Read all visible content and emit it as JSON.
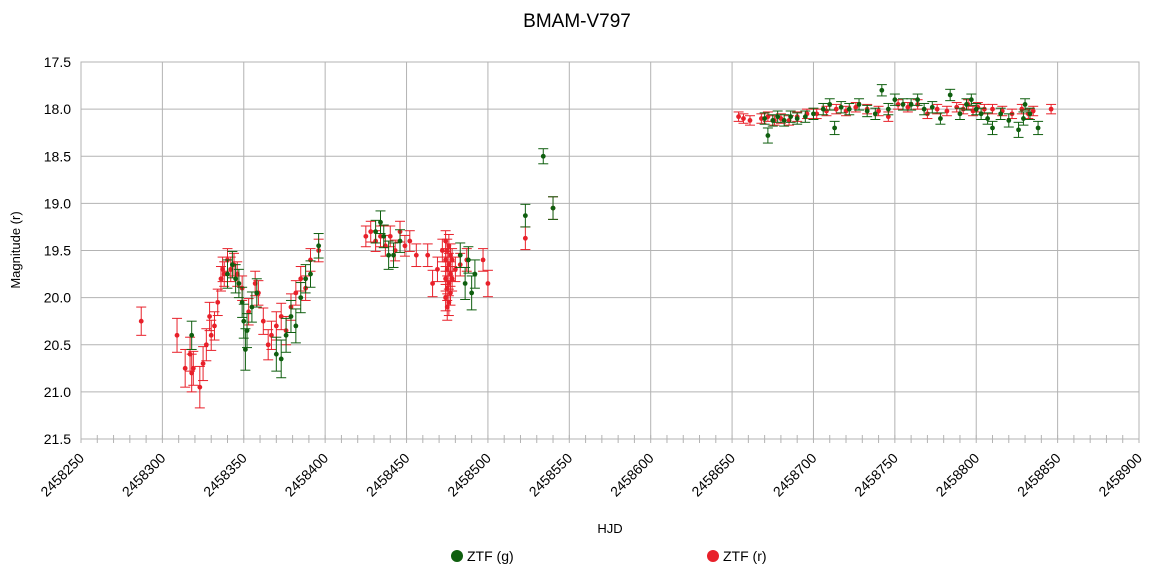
{
  "chart_data": {
    "type": "scatter",
    "title": "BMAM-V797",
    "xlabel": "HJD",
    "ylabel": "Magnitude (r)",
    "xlim": [
      2458250,
      2458900
    ],
    "ylim": [
      17.5,
      21.5
    ],
    "y_inverted": true,
    "x_ticks": [
      "2458250",
      "2458300",
      "2458350",
      "2458400",
      "2458450",
      "2458500",
      "2458550",
      "2458600",
      "2458650",
      "2458700",
      "2458750",
      "2458800",
      "2458850",
      "2458900"
    ],
    "y_ticks": [
      "17.5",
      "18.0",
      "18.5",
      "19.0",
      "19.5",
      "20.0",
      "20.5",
      "21.0",
      "21.5"
    ],
    "grid": true,
    "legend_position": "bottom",
    "series": [
      {
        "name": "ZTF (g)",
        "color": "#0f5f0f",
        "points": [
          [
            2458318,
            20.4,
            0.15
          ],
          [
            2458340,
            19.75,
            0.15
          ],
          [
            2458343,
            19.65,
            0.14
          ],
          [
            2458345,
            19.8,
            0.15
          ],
          [
            2458347,
            19.85,
            0.15
          ],
          [
            2458349,
            20.05,
            0.16
          ],
          [
            2458350,
            20.25,
            0.18
          ],
          [
            2458351,
            20.55,
            0.22
          ],
          [
            2458352,
            20.35,
            0.18
          ],
          [
            2458355,
            20.1,
            0.16
          ],
          [
            2458358,
            19.95,
            0.15
          ],
          [
            2458370,
            20.6,
            0.18
          ],
          [
            2458373,
            20.65,
            0.2
          ],
          [
            2458376,
            20.4,
            0.18
          ],
          [
            2458379,
            20.2,
            0.17
          ],
          [
            2458382,
            20.3,
            0.18
          ],
          [
            2458385,
            20.0,
            0.16
          ],
          [
            2458388,
            19.8,
            0.15
          ],
          [
            2458391,
            19.75,
            0.14
          ],
          [
            2458396,
            19.45,
            0.13
          ],
          [
            2458431,
            19.3,
            0.12
          ],
          [
            2458434,
            19.2,
            0.12
          ],
          [
            2458436,
            19.35,
            0.12
          ],
          [
            2458439,
            19.55,
            0.15
          ],
          [
            2458442,
            19.55,
            0.13
          ],
          [
            2458446,
            19.4,
            0.12
          ],
          [
            2458483,
            19.55,
            0.13
          ],
          [
            2458486,
            19.85,
            0.17
          ],
          [
            2458488,
            19.6,
            0.14
          ],
          [
            2458490,
            19.95,
            0.18
          ],
          [
            2458492,
            19.75,
            0.15
          ],
          [
            2458523,
            19.13,
            0.12
          ],
          [
            2458534,
            18.5,
            0.08
          ],
          [
            2458540,
            19.05,
            0.12
          ],
          [
            2458670,
            18.1,
            0.06
          ],
          [
            2458672,
            18.28,
            0.08
          ],
          [
            2458675,
            18.12,
            0.06
          ],
          [
            2458678,
            18.08,
            0.06
          ],
          [
            2458682,
            18.12,
            0.06
          ],
          [
            2458686,
            18.08,
            0.06
          ],
          [
            2458690,
            18.1,
            0.06
          ],
          [
            2458695,
            18.08,
            0.06
          ],
          [
            2458700,
            18.05,
            0.06
          ],
          [
            2458706,
            18.0,
            0.06
          ],
          [
            2458710,
            17.95,
            0.06
          ],
          [
            2458713,
            18.2,
            0.07
          ],
          [
            2458717,
            17.98,
            0.06
          ],
          [
            2458722,
            18.0,
            0.06
          ],
          [
            2458728,
            17.95,
            0.06
          ],
          [
            2458733,
            18.02,
            0.06
          ],
          [
            2458738,
            18.05,
            0.06
          ],
          [
            2458742,
            17.8,
            0.06
          ],
          [
            2458746,
            18.0,
            0.06
          ],
          [
            2458750,
            17.9,
            0.06
          ],
          [
            2458755,
            17.95,
            0.06
          ],
          [
            2458760,
            17.95,
            0.06
          ],
          [
            2458764,
            17.9,
            0.06
          ],
          [
            2458768,
            18.0,
            0.06
          ],
          [
            2458773,
            17.98,
            0.06
          ],
          [
            2458778,
            18.1,
            0.06
          ],
          [
            2458784,
            17.85,
            0.06
          ],
          [
            2458790,
            18.05,
            0.06
          ],
          [
            2458794,
            17.95,
            0.06
          ],
          [
            2458797,
            17.9,
            0.06
          ],
          [
            2458800,
            18.0,
            0.06
          ],
          [
            2458803,
            18.05,
            0.06
          ],
          [
            2458807,
            18.1,
            0.06
          ],
          [
            2458810,
            18.2,
            0.07
          ],
          [
            2458815,
            18.05,
            0.06
          ],
          [
            2458820,
            18.12,
            0.07
          ],
          [
            2458826,
            18.22,
            0.08
          ],
          [
            2458829,
            18.1,
            0.07
          ],
          [
            2458830,
            17.95,
            0.06
          ],
          [
            2458833,
            18.05,
            0.06
          ],
          [
            2458838,
            18.2,
            0.07
          ]
        ]
      },
      {
        "name": "ZTF (r)",
        "color": "#e8202a",
        "points": [
          [
            2458287,
            20.25,
            0.15
          ],
          [
            2458309,
            20.4,
            0.18
          ],
          [
            2458314,
            20.75,
            0.2
          ],
          [
            2458317,
            20.6,
            0.18
          ],
          [
            2458318,
            20.8,
            0.2
          ],
          [
            2458319,
            20.75,
            0.18
          ],
          [
            2458323,
            20.95,
            0.22
          ],
          [
            2458325,
            20.7,
            0.18
          ],
          [
            2458327,
            20.5,
            0.17
          ],
          [
            2458329,
            20.2,
            0.15
          ],
          [
            2458330,
            20.4,
            0.16
          ],
          [
            2458332,
            20.3,
            0.15
          ],
          [
            2458334,
            20.05,
            0.14
          ],
          [
            2458336,
            19.8,
            0.13
          ],
          [
            2458337,
            19.7,
            0.13
          ],
          [
            2458338,
            19.75,
            0.13
          ],
          [
            2458340,
            19.6,
            0.12
          ],
          [
            2458342,
            19.7,
            0.13
          ],
          [
            2458344,
            19.65,
            0.12
          ],
          [
            2458346,
            19.75,
            0.13
          ],
          [
            2458349,
            19.9,
            0.13
          ],
          [
            2458353,
            20.15,
            0.14
          ],
          [
            2458357,
            19.85,
            0.13
          ],
          [
            2458359,
            19.95,
            0.13
          ],
          [
            2458362,
            20.25,
            0.14
          ],
          [
            2458365,
            20.5,
            0.16
          ],
          [
            2458367,
            20.4,
            0.15
          ],
          [
            2458370,
            20.3,
            0.15
          ],
          [
            2458373,
            20.2,
            0.14
          ],
          [
            2458376,
            20.35,
            0.15
          ],
          [
            2458379,
            20.1,
            0.14
          ],
          [
            2458382,
            19.95,
            0.13
          ],
          [
            2458385,
            19.8,
            0.13
          ],
          [
            2458388,
            19.9,
            0.13
          ],
          [
            2458391,
            19.6,
            0.12
          ],
          [
            2458396,
            19.5,
            0.12
          ],
          [
            2458425,
            19.35,
            0.11
          ],
          [
            2458428,
            19.3,
            0.11
          ],
          [
            2458431,
            19.4,
            0.11
          ],
          [
            2458434,
            19.35,
            0.11
          ],
          [
            2458437,
            19.45,
            0.11
          ],
          [
            2458440,
            19.35,
            0.11
          ],
          [
            2458443,
            19.5,
            0.11
          ],
          [
            2458446,
            19.3,
            0.11
          ],
          [
            2458449,
            19.45,
            0.11
          ],
          [
            2458452,
            19.4,
            0.11
          ],
          [
            2458456,
            19.55,
            0.12
          ],
          [
            2458463,
            19.55,
            0.12
          ],
          [
            2458466,
            19.85,
            0.14
          ],
          [
            2458469,
            19.7,
            0.13
          ],
          [
            2458472,
            19.5,
            0.12
          ],
          [
            2458474,
            19.4,
            0.11
          ],
          [
            2458474,
            19.6,
            0.12
          ],
          [
            2458474,
            19.8,
            0.13
          ],
          [
            2458474,
            20.0,
            0.14
          ],
          [
            2458475,
            19.5,
            0.12
          ],
          [
            2458475,
            19.7,
            0.13
          ],
          [
            2458475,
            19.9,
            0.13
          ],
          [
            2458475,
            20.1,
            0.14
          ],
          [
            2458476,
            19.45,
            0.12
          ],
          [
            2458476,
            19.65,
            0.12
          ],
          [
            2458476,
            19.85,
            0.13
          ],
          [
            2458476,
            20.05,
            0.14
          ],
          [
            2458477,
            19.55,
            0.12
          ],
          [
            2458477,
            19.75,
            0.13
          ],
          [
            2458477,
            19.95,
            0.13
          ],
          [
            2458478,
            19.6,
            0.12
          ],
          [
            2458478,
            19.8,
            0.13
          ],
          [
            2458480,
            19.7,
            0.13
          ],
          [
            2458483,
            19.65,
            0.12
          ],
          [
            2458487,
            19.6,
            0.12
          ],
          [
            2458497,
            19.6,
            0.12
          ],
          [
            2458500,
            19.85,
            0.14
          ],
          [
            2458523,
            19.37,
            0.12
          ],
          [
            2458540,
            19.05,
            0.12
          ],
          [
            2458654,
            18.08,
            0.05
          ],
          [
            2458657,
            18.1,
            0.05
          ],
          [
            2458661,
            18.12,
            0.05
          ],
          [
            2458668,
            18.1,
            0.05
          ],
          [
            2458672,
            18.08,
            0.05
          ],
          [
            2458676,
            18.12,
            0.05
          ],
          [
            2458680,
            18.1,
            0.05
          ],
          [
            2458685,
            18.12,
            0.05
          ],
          [
            2458690,
            18.08,
            0.05
          ],
          [
            2458696,
            18.05,
            0.05
          ],
          [
            2458702,
            18.05,
            0.05
          ],
          [
            2458708,
            18.02,
            0.05
          ],
          [
            2458714,
            18.0,
            0.05
          ],
          [
            2458720,
            18.02,
            0.05
          ],
          [
            2458726,
            17.98,
            0.05
          ],
          [
            2458733,
            18.0,
            0.05
          ],
          [
            2458740,
            18.02,
            0.05
          ],
          [
            2458746,
            18.08,
            0.05
          ],
          [
            2458752,
            17.95,
            0.05
          ],
          [
            2458758,
            17.98,
            0.05
          ],
          [
            2458764,
            17.95,
            0.05
          ],
          [
            2458770,
            18.05,
            0.05
          ],
          [
            2458776,
            18.0,
            0.05
          ],
          [
            2458782,
            18.02,
            0.05
          ],
          [
            2458788,
            17.98,
            0.05
          ],
          [
            2458792,
            18.0,
            0.05
          ],
          [
            2458795,
            17.95,
            0.05
          ],
          [
            2458798,
            18.02,
            0.05
          ],
          [
            2458801,
            17.98,
            0.05
          ],
          [
            2458805,
            18.0,
            0.05
          ],
          [
            2458810,
            18.0,
            0.05
          ],
          [
            2458816,
            18.02,
            0.05
          ],
          [
            2458822,
            18.05,
            0.05
          ],
          [
            2458828,
            18.0,
            0.05
          ],
          [
            2458832,
            18.05,
            0.05
          ],
          [
            2458835,
            18.02,
            0.05
          ],
          [
            2458846,
            18.0,
            0.05
          ]
        ]
      }
    ]
  }
}
